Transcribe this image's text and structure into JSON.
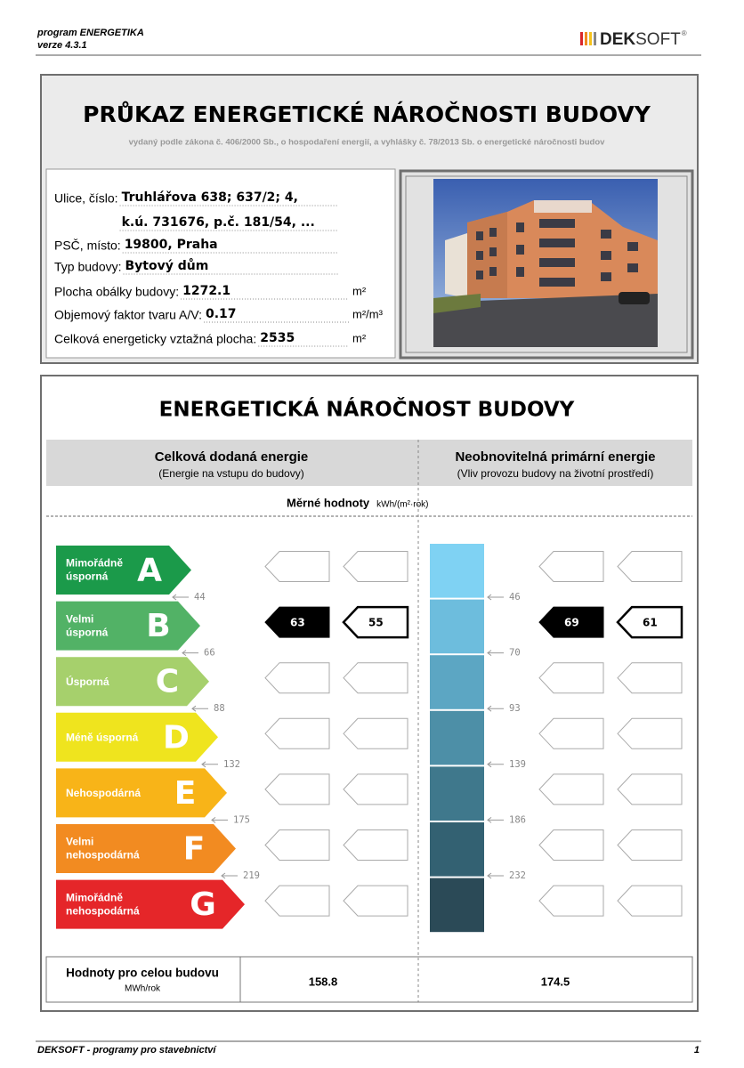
{
  "header": {
    "program": "program ENERGETIKA",
    "version": "verze 4.3.1",
    "logo_bold": "DEK",
    "logo_light": "SOFT",
    "logo_mark": "®"
  },
  "certificate": {
    "title": "PRŮKAZ ENERGETICKÉ NÁROČNOSTI BUDOVY",
    "subtitle": "vydaný podle zákona č. 406/2000 Sb., o hospodaření energií, a vyhlášky č. 78/2013 Sb. o energetické náročnosti budov",
    "fields": [
      {
        "label": "Ulice, číslo:",
        "value": "Truhlářova 638; 637/2; 4,"
      },
      {
        "value": "k.ú. 731676, p.č. 181/54, ..."
      },
      {
        "label": "PSČ, místo:",
        "value": "19800, Praha"
      },
      {
        "label": "Typ budovy:",
        "value": "Bytový dům"
      },
      {
        "label": "Plocha obálky budovy:",
        "value": 1272.1,
        "unit": "m²"
      },
      {
        "label": "Objemový faktor tvaru A/V:",
        "value": 0.17,
        "unit": "m²/m³"
      },
      {
        "label": "Celková energeticky vztažná plocha:",
        "value": 2535,
        "unit": "m²"
      }
    ]
  },
  "energy": {
    "title": "ENERGETICKÁ NÁROČNOST BUDOVY",
    "columns": [
      {
        "title": "Celková dodaná energie",
        "subtitle": "(Energie na vstupu do budovy)",
        "thresholds": [
          44,
          66,
          88,
          132,
          175,
          219
        ],
        "values": [
          63,
          55
        ],
        "total": 158.8
      },
      {
        "title": "Neobnovitelná primární energie",
        "subtitle": "(Vliv provozu budovy na životní prostředí)",
        "thresholds": [
          46,
          70,
          93,
          139,
          186,
          232
        ],
        "values": [
          69,
          61
        ],
        "total": 174.5
      }
    ],
    "specific_label": "Měrné hodnoty",
    "specific_unit": "kWh/(m²·rok)",
    "classes": [
      {
        "letter": "A",
        "label": [
          "Mimořádně",
          "úsporná"
        ],
        "color": "#1b9a4a"
      },
      {
        "letter": "B",
        "label": [
          "Velmi",
          "úsporná"
        ],
        "color": "#52b266"
      },
      {
        "letter": "C",
        "label": [
          "Úsporná"
        ],
        "color": "#a6d06c"
      },
      {
        "letter": "D",
        "label": [
          "Méně úsporná"
        ],
        "color": "#efe41e"
      },
      {
        "letter": "E",
        "label": [
          "Nehospodárná"
        ],
        "color": "#f8b418"
      },
      {
        "letter": "F",
        "label": [
          "Velmi",
          "nehospodárná"
        ],
        "color": "#f28b21"
      },
      {
        "letter": "G",
        "label": [
          "Mimořádně",
          "nehospodárná"
        ],
        "color": "#e52629"
      }
    ],
    "primary_colors": [
      "#7fd2f3",
      "#6dbddd",
      "#5ca6c3",
      "#4d8fa7",
      "#3f788c",
      "#336172",
      "#2b4a57"
    ],
    "totals_label": "Hodnoty pro celou budovu",
    "totals_unit": "MWh/rok"
  },
  "footer": {
    "left": "DEKSOFT - programy pro stavebnictví",
    "page": "1"
  }
}
